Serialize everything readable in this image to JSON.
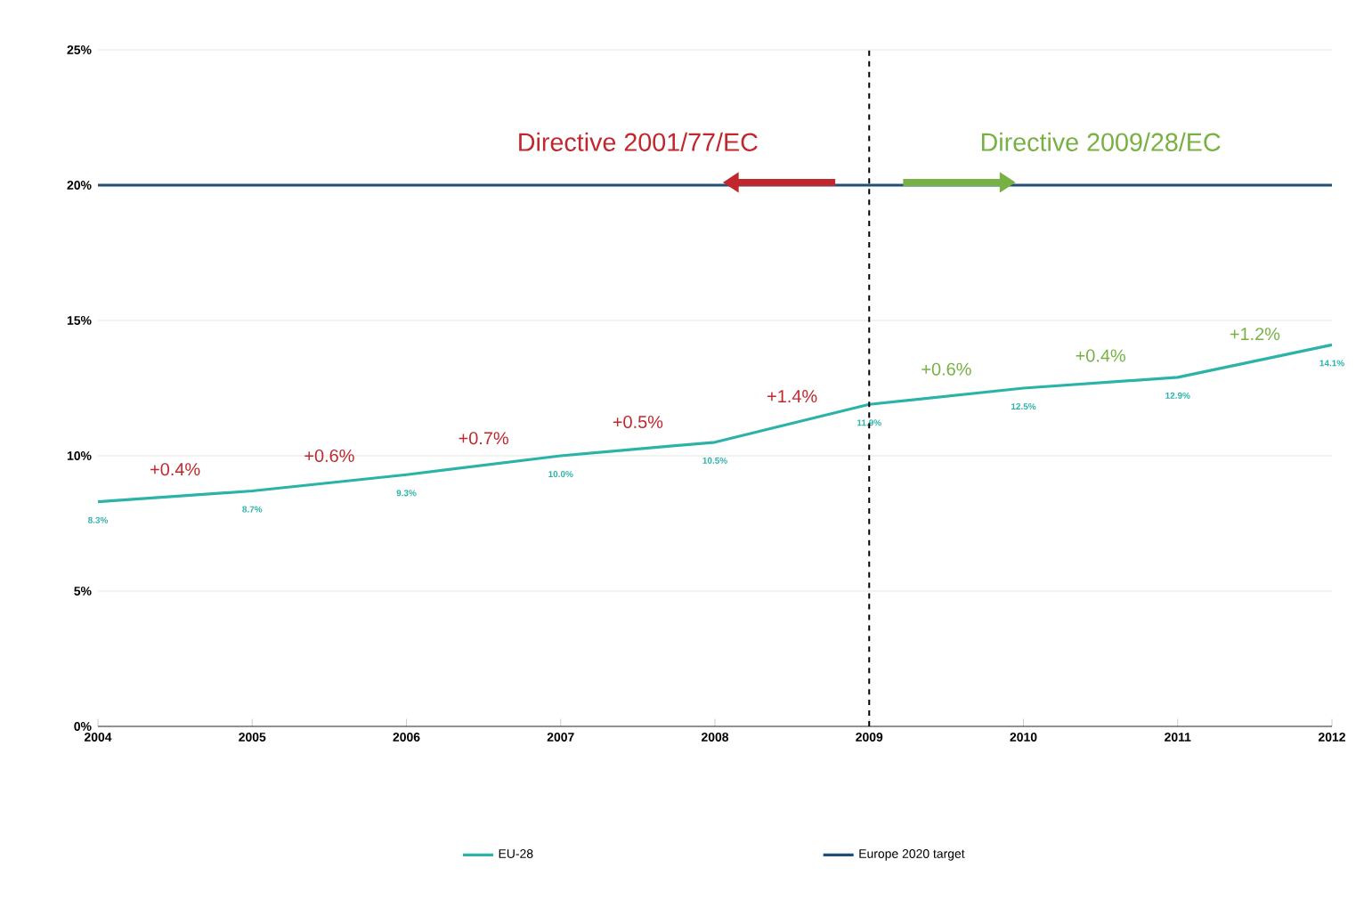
{
  "chart_data": {
    "type": "line",
    "x": [
      2004,
      2005,
      2006,
      2007,
      2008,
      2009,
      2010,
      2011,
      2012
    ],
    "series": [
      {
        "name": "EU-28",
        "color": "#2bb3a8",
        "values": [
          8.3,
          8.7,
          9.3,
          10.0,
          10.5,
          11.9,
          12.5,
          12.9,
          14.1
        ],
        "value_labels": [
          "8.3%",
          "8.7%",
          "9.3%",
          "10.0%",
          "10.5%",
          "11.9%",
          "12.5%",
          "12.9%",
          "14.1%"
        ]
      },
      {
        "name": "Europe 2020 target",
        "color": "#1f4e79",
        "values": [
          20,
          20,
          20,
          20,
          20,
          20,
          20,
          20,
          20
        ]
      }
    ],
    "xlim": [
      2004,
      2012
    ],
    "xticks": [
      2004,
      2005,
      2006,
      2007,
      2008,
      2009,
      2010,
      2011,
      2012
    ],
    "ylim": [
      0,
      25
    ],
    "yticks": [
      {
        "value": 0,
        "label": "0%"
      },
      {
        "value": 5,
        "label": "5%"
      },
      {
        "value": 10,
        "label": "10%"
      },
      {
        "value": 15,
        "label": "15%"
      },
      {
        "value": 20,
        "label": "20%"
      },
      {
        "value": 25,
        "label": "25%"
      }
    ],
    "grid": "y",
    "legend": "bottom",
    "marker": "none",
    "line_style": "solid",
    "ref_lines": [
      {
        "axis": "x",
        "value": 2009,
        "color": "#000000",
        "line_style": "dashed"
      }
    ],
    "annotations": [
      "Directive 2001/77/EC",
      "Directive 2009/28/EC",
      "+0.4%",
      "+0.6%",
      "+0.7%",
      "+0.5%",
      "+1.4%",
      "+0.6%",
      "+0.4%",
      "+1.2%"
    ]
  }
}
